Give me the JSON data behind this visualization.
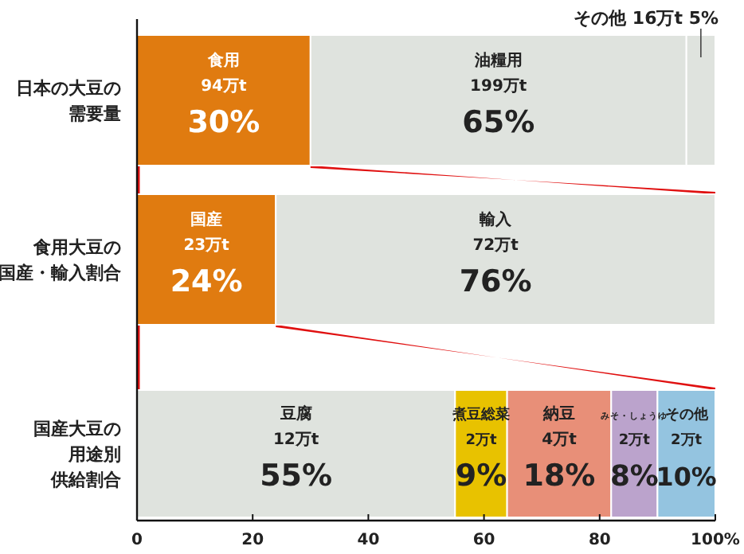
{
  "chart_data": {
    "type": "bar",
    "orientation": "horizontal",
    "stacked": true,
    "categories": [
      "日本の大豆の需要量",
      "食用大豆の国産・輸入割合",
      "国産大豆の用途別供給割合"
    ],
    "series": [
      {
        "colors": [
          "#e07b10",
          "#e07b10",
          "#dfe3de"
        ],
        "values": [
          30,
          24,
          55
        ],
        "value_labels": [
          "食用\n94万t\n30%",
          "国産\n23万t\n24%",
          "豆腐\n12万t\n55%"
        ]
      },
      {
        "colors": [
          "#dfe3de",
          "#dfe3de",
          "#e8c200"
        ],
        "values": [
          65,
          76,
          9
        ],
        "value_labels": [
          "油糧用\n199万t\n65%",
          "輸入\n72万t\n76%",
          "煮豆総菜\n2万t\n9%"
        ]
      },
      {
        "colors": [
          "#dfe3de",
          null,
          "#e88f78"
        ],
        "values": [
          5,
          null,
          18
        ],
        "value_labels": [
          "その他 16万t 5%",
          null,
          "納豆\n4万t\n18%"
        ]
      },
      {
        "colors": [
          null,
          null,
          "#bba3cc"
        ],
        "values": [
          null,
          null,
          8
        ],
        "value_labels": [
          null,
          null,
          "みそ・しょうゆ\n2万t\n8%"
        ]
      },
      {
        "colors": [
          null,
          null,
          "#94c4e0"
        ],
        "values": [
          null,
          null,
          10
        ],
        "value_labels": [
          null,
          null,
          "その他\n2万t\n10%"
        ]
      }
    ],
    "xlim": [
      0,
      100
    ],
    "xticks": [
      0,
      20,
      40,
      60,
      80,
      {
        "value": 100,
        "label": "100%"
      }
    ],
    "grid": false,
    "legend": false
  }
}
